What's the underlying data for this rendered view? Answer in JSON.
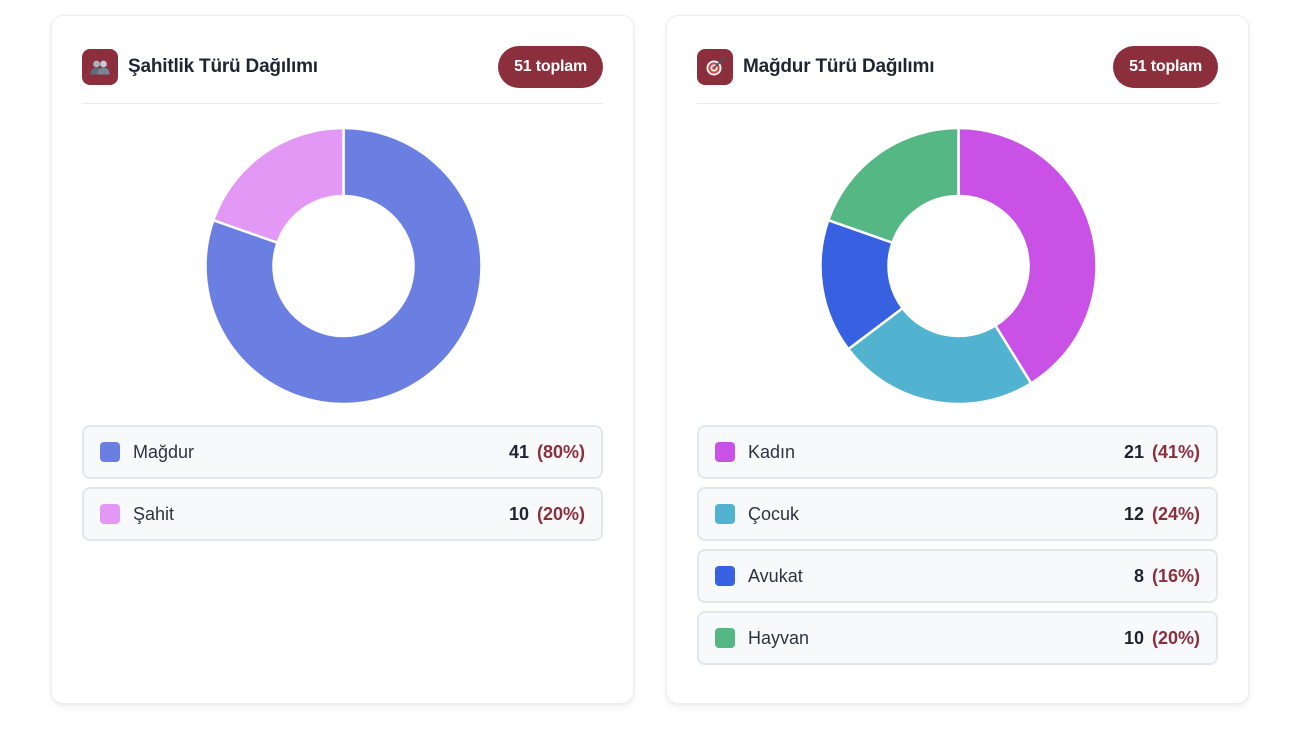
{
  "cards": [
    {
      "title": "Şahitlik Türü Dağılımı",
      "icon": "people-icon",
      "badge": "51 toplam",
      "legend": [
        {
          "label": "Mağdur",
          "value": "41",
          "pct": "(80%)",
          "color": "#6b7fe3"
        },
        {
          "label": "Şahit",
          "value": "10",
          "pct": "(20%)",
          "color": "#e298f4"
        }
      ]
    },
    {
      "title": "Mağdur Türü Dağılımı",
      "icon": "target-icon",
      "badge": "51 toplam",
      "legend": [
        {
          "label": "Kadın",
          "value": "21",
          "pct": "(41%)",
          "color": "#c951e6"
        },
        {
          "label": "Çocuk",
          "value": "12",
          "pct": "(24%)",
          "color": "#52b3d1"
        },
        {
          "label": "Avukat",
          "value": "8",
          "pct": "(16%)",
          "color": "#3761e0"
        },
        {
          "label": "Hayvan",
          "value": "10",
          "pct": "(20%)",
          "color": "#55b884"
        }
      ]
    }
  ],
  "chart_data": [
    {
      "type": "pie",
      "title": "Şahitlik Türü Dağılımı",
      "categories": [
        "Mağdur",
        "Şahit"
      ],
      "values": [
        41,
        10
      ],
      "colors": [
        "#6b7fe3",
        "#e298f4"
      ]
    },
    {
      "type": "pie",
      "title": "Mağdur Türü Dağılımı",
      "categories": [
        "Kadın",
        "Çocuk",
        "Avukat",
        "Hayvan"
      ],
      "values": [
        21,
        12,
        8,
        10
      ],
      "colors": [
        "#c951e6",
        "#52b3d1",
        "#3761e0",
        "#55b884"
      ]
    }
  ]
}
